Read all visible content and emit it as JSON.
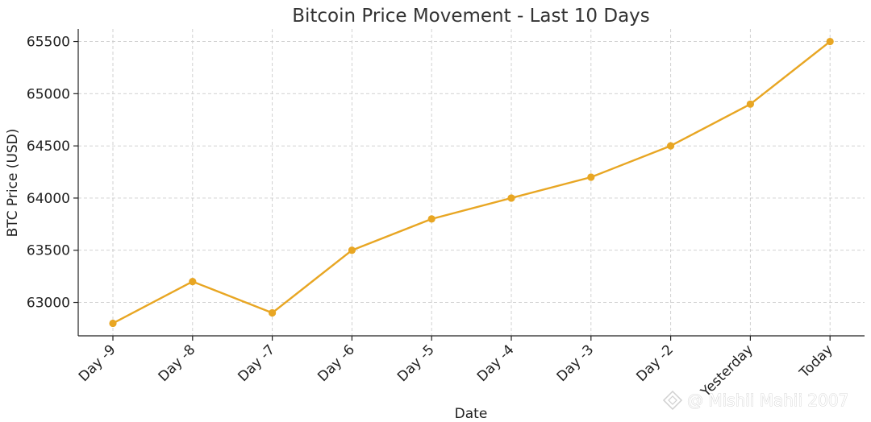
{
  "chart_data": {
    "type": "line",
    "title": "Bitcoin Price Movement - Last 10 Days",
    "xlabel": "Date",
    "ylabel": "BTC Price (USD)",
    "categories": [
      "Day -9",
      "Day -8",
      "Day -7",
      "Day -6",
      "Day -5",
      "Day -4",
      "Day -3",
      "Day -2",
      "Yesterday",
      "Today"
    ],
    "values": [
      62800,
      63200,
      62900,
      63500,
      63800,
      64000,
      64200,
      64500,
      64900,
      65500
    ],
    "yticks": [
      63000,
      63500,
      64000,
      64500,
      65000,
      65500
    ],
    "ylim": [
      62680,
      65620
    ],
    "grid": true,
    "line_color": "#E8A623"
  },
  "watermark": {
    "text": "@ Mishii Mahii 2007",
    "icon": "diamond-logo-icon"
  }
}
